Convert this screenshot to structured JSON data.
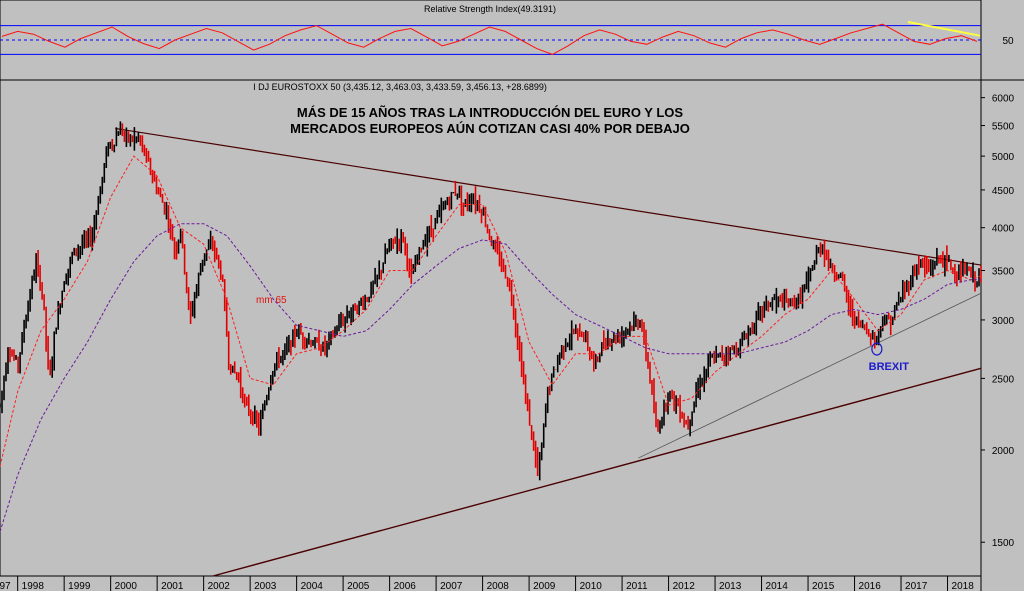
{
  "chart_data": [
    {
      "type": "line",
      "title": "Relative Strength Index(49.3191)",
      "ylim": [
        0,
        100
      ],
      "yticks": [
        50
      ],
      "reference_lines": [
        30,
        50,
        70
      ],
      "series": [
        {
          "values": [
            55,
            62,
            58,
            48,
            40,
            52,
            60,
            68,
            55,
            45,
            38,
            50,
            58,
            66,
            60,
            48,
            36,
            44,
            56,
            64,
            70,
            58,
            46,
            40,
            52,
            62,
            66,
            54,
            42,
            48,
            58,
            68,
            62,
            50,
            38,
            30,
            42,
            56,
            64,
            58,
            48,
            44,
            54,
            62,
            56,
            46,
            40,
            52,
            60,
            64,
            58,
            50,
            44,
            52,
            60,
            66,
            72,
            60,
            48,
            44,
            52,
            56,
            48
          ]
        }
      ],
      "annotation": "Bearish trendline on RSI (yellow)"
    },
    {
      "type": "line",
      "title": "I DJ EUROSTOXX 50 (3,435.12, 3,463.03, 3,433.59, 3,456.13, +28.6899)",
      "yscale": "log",
      "ylim": [
        1350,
        6300
      ],
      "yticks": [
        1500,
        2000,
        2500,
        3000,
        3500,
        4000,
        4500,
        5000,
        5500,
        6000
      ],
      "xticks": [
        "97",
        "1998",
        "1999",
        "2000",
        "2001",
        "2002",
        "2003",
        "2004",
        "2005",
        "2006",
        "2007",
        "2008",
        "2009",
        "2010",
        "2011",
        "2012",
        "2013",
        "2014",
        "2015",
        "2016",
        "2017",
        "2018"
      ],
      "x_year_positions": [
        1997.65,
        1998,
        1999,
        2000,
        2001,
        2002,
        2003,
        2004,
        2005,
        2006,
        2007,
        2008,
        2009,
        2010,
        2011,
        2012,
        2013,
        2014,
        2015,
        2016,
        2017,
        2018
      ],
      "annotation_lines": [
        "MÁS DE 15 AÑOS TRAS LA INTRODUCCIÓN DEL EURO Y LOS",
        "MERCADOS EUROPEOS AÚN COTIZAN CASI 40% POR DEBAJO"
      ],
      "ma_label": "mm 65",
      "brexit_label": "BREXIT",
      "brexit_point": {
        "x": 2016.48,
        "y": 2740
      },
      "series": [
        {
          "name": "price",
          "x": [
            1997.62,
            1997.8,
            1998.0,
            1998.2,
            1998.4,
            1998.55,
            1998.68,
            1998.8,
            1999.0,
            1999.2,
            1999.4,
            1999.6,
            1999.8,
            1999.95,
            2000.05,
            2000.2,
            2000.4,
            2000.6,
            2000.8,
            2001.0,
            2001.2,
            2001.4,
            2001.5,
            2001.7,
            2002.0,
            2002.2,
            2002.4,
            2002.55,
            2002.75,
            2002.9,
            2003.2,
            2003.5,
            2003.8,
            2004.0,
            2004.3,
            2004.6,
            2004.9,
            2005.2,
            2005.5,
            2005.8,
            2006.0,
            2006.3,
            2006.45,
            2006.7,
            2007.0,
            2007.3,
            2007.45,
            2007.6,
            2007.8,
            2008.0,
            2008.2,
            2008.4,
            2008.6,
            2008.8,
            2008.95,
            2009.2,
            2009.4,
            2009.7,
            2010.0,
            2010.2,
            2010.4,
            2010.6,
            2010.9,
            2011.2,
            2011.4,
            2011.6,
            2011.75,
            2012.0,
            2012.2,
            2012.4,
            2012.6,
            2012.9,
            2013.2,
            2013.5,
            2013.8,
            2014.0,
            2014.3,
            2014.6,
            2014.8,
            2015.0,
            2015.2,
            2015.3,
            2015.5,
            2015.7,
            2015.9,
            2016.1,
            2016.3,
            2016.45,
            2016.6,
            2016.8,
            2017.0,
            2017.2,
            2017.4,
            2017.6,
            2017.8,
            2018.0,
            2018.2,
            2018.4,
            2018.6,
            2018.72
          ],
          "y": [
            2300,
            2750,
            2600,
            3100,
            3600,
            3200,
            2450,
            2900,
            3400,
            3700,
            3800,
            3900,
            4600,
            5200,
            5200,
            5450,
            5250,
            5300,
            4900,
            4500,
            4200,
            3700,
            4000,
            3000,
            3700,
            3800,
            3400,
            2600,
            2500,
            2300,
            2150,
            2600,
            2750,
            2900,
            2800,
            2750,
            2950,
            3100,
            3200,
            3500,
            3800,
            3900,
            3400,
            3800,
            4100,
            4400,
            4500,
            4300,
            4400,
            4200,
            3800,
            3600,
            3300,
            2700,
            2300,
            1850,
            2400,
            2750,
            2900,
            2850,
            2600,
            2800,
            2850,
            2950,
            3000,
            2500,
            2100,
            2400,
            2300,
            2150,
            2400,
            2650,
            2700,
            2750,
            2950,
            3100,
            3200,
            3150,
            3200,
            3400,
            3700,
            3800,
            3500,
            3450,
            3100,
            2950,
            2900,
            2800,
            3000,
            3000,
            3250,
            3400,
            3600,
            3500,
            3650,
            3600,
            3450,
            3500,
            3400,
            3456
          ]
        },
        {
          "name": "mm 65",
          "x": [
            1997.62,
            1998.0,
            1998.5,
            1999.0,
            1999.5,
            2000.0,
            2000.5,
            2001.0,
            2001.5,
            2002.0,
            2002.5,
            2003.0,
            2003.5,
            2004.0,
            2004.5,
            2005.0,
            2005.5,
            2006.0,
            2006.5,
            2007.0,
            2007.5,
            2008.0,
            2008.5,
            2009.0,
            2009.5,
            2010.0,
            2010.5,
            2011.0,
            2011.5,
            2012.0,
            2012.5,
            2013.0,
            2013.5,
            2014.0,
            2014.5,
            2015.0,
            2015.5,
            2016.0,
            2016.5,
            2017.0,
            2017.5,
            2018.0,
            2018.5,
            2018.72
          ],
          "y": [
            1900,
            2400,
            2900,
            3200,
            3600,
            4400,
            5000,
            4700,
            4000,
            3800,
            3200,
            2500,
            2450,
            2700,
            2750,
            2900,
            3100,
            3500,
            3500,
            3900,
            4300,
            4300,
            3700,
            2800,
            2450,
            2700,
            2700,
            2850,
            2850,
            2300,
            2350,
            2550,
            2700,
            2850,
            3050,
            3200,
            3500,
            3200,
            2900,
            3050,
            3400,
            3500,
            3400,
            3440
          ]
        },
        {
          "name": "mm 200",
          "x": [
            1997.62,
            1998.0,
            1998.5,
            1999.0,
            1999.5,
            2000.0,
            2000.5,
            2001.0,
            2001.5,
            2002.0,
            2002.5,
            2003.0,
            2003.5,
            2004.0,
            2004.5,
            2005.0,
            2005.5,
            2006.0,
            2006.5,
            2007.0,
            2007.5,
            2008.0,
            2008.5,
            2009.0,
            2009.5,
            2010.0,
            2010.5,
            2011.0,
            2011.5,
            2012.0,
            2012.5,
            2013.0,
            2013.5,
            2014.0,
            2014.5,
            2015.0,
            2015.5,
            2016.0,
            2016.5,
            2017.0,
            2017.5,
            2018.0,
            2018.5,
            2018.72
          ],
          "y": [
            1550,
            1850,
            2200,
            2500,
            2800,
            3200,
            3600,
            3900,
            4050,
            4050,
            3900,
            3550,
            3200,
            2950,
            2900,
            2850,
            2900,
            3100,
            3350,
            3550,
            3750,
            3850,
            3800,
            3500,
            3250,
            3050,
            2950,
            2850,
            2750,
            2700,
            2700,
            2700,
            2700,
            2750,
            2800,
            2900,
            3050,
            3100,
            3050,
            3100,
            3200,
            3350,
            3400,
            3400
          ]
        },
        {
          "name": "resistance",
          "x": [
            2000.1,
            2018.72
          ],
          "y": [
            5450,
            3560
          ]
        },
        {
          "name": "support",
          "x": [
            2002.2,
            2018.72
          ],
          "y": [
            1350,
            2580
          ]
        },
        {
          "name": "support 2",
          "x": [
            2011.35,
            2018.72
          ],
          "y": [
            1950,
            3260
          ]
        }
      ]
    }
  ],
  "colors": {
    "background": "#c0c0c0",
    "price_up": "#000000",
    "price_down": "#e00000",
    "ma65": "#ff2020",
    "ma200": "#6a1a9a",
    "rsi": "#ff1010",
    "rsi_bands": "#0000ff",
    "rsi_trend": "#ffff40",
    "trendline": "#4a0000",
    "brexit": "#1c1ccc"
  }
}
